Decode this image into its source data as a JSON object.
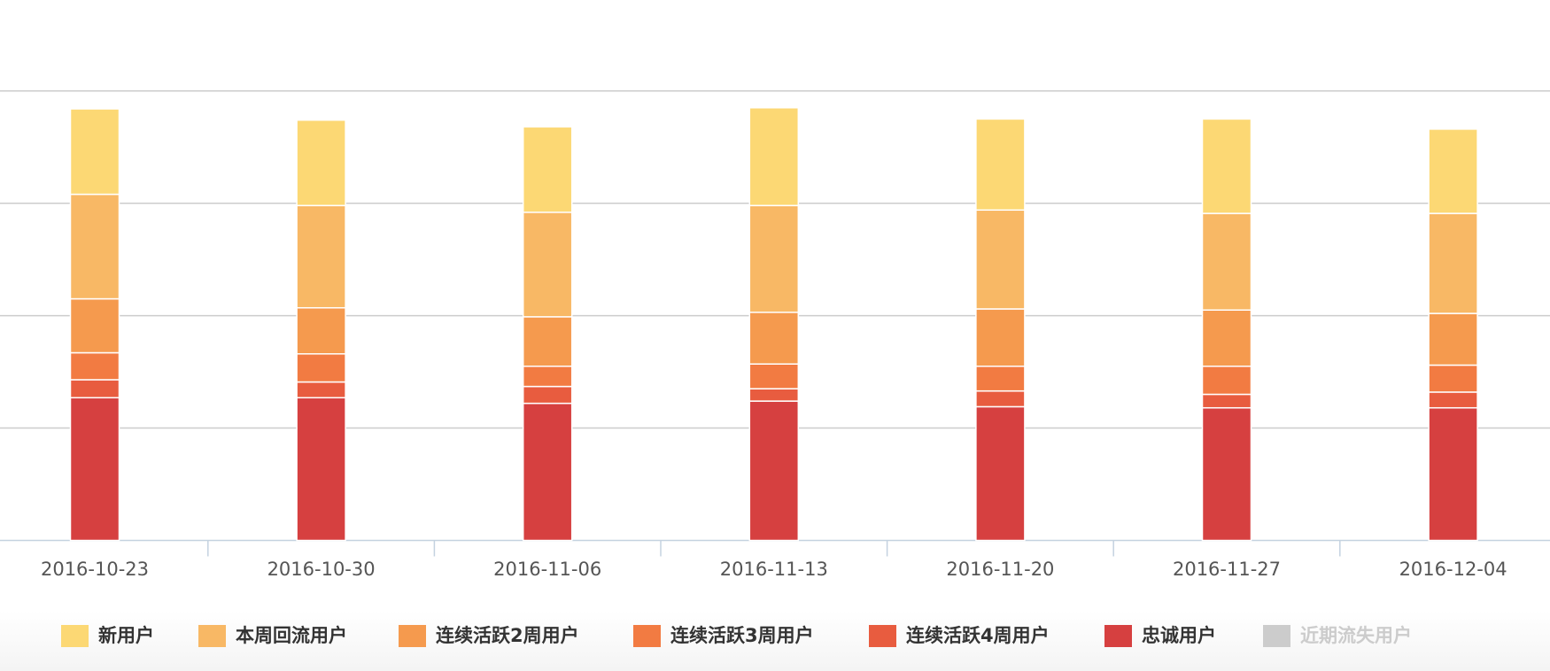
{
  "chart_data": {
    "type": "stacked-bar",
    "categories": [
      "2016-10-23",
      "2016-10-30",
      "2016-11-06",
      "2016-11-13",
      "2016-11-20",
      "2016-11-27",
      "2016-12-04"
    ],
    "series": [
      {
        "name": "新用户",
        "color": "#fcd874",
        "values": [
          76,
          76,
          76,
          87,
          81,
          84,
          75
        ]
      },
      {
        "name": "本周回流用户",
        "color": "#f8b865",
        "values": [
          93,
          91,
          93,
          95,
          88,
          86,
          89
        ]
      },
      {
        "name": "连续活跃2周用户",
        "color": "#f59a4e",
        "values": [
          48,
          41,
          44,
          46,
          51,
          50,
          46
        ]
      },
      {
        "name": "连续活跃3周用户",
        "color": "#f27b42",
        "values": [
          24,
          25,
          18,
          22,
          22,
          25,
          24
        ]
      },
      {
        "name": "连续活跃4周用户",
        "color": "#e85c3f",
        "values": [
          16,
          14,
          15,
          11,
          14,
          12,
          14
        ]
      },
      {
        "name": "忠诚用户",
        "color": "#d64040",
        "values": [
          127,
          127,
          122,
          124,
          119,
          118,
          118
        ]
      },
      {
        "name": "近期流失用户",
        "color": "#cccccc",
        "hidden": true,
        "values": [
          null,
          null,
          null,
          null,
          null,
          null,
          null
        ]
      }
    ],
    "ylim": [
      0,
      400
    ],
    "yticks": [
      0,
      100,
      200,
      300,
      400
    ],
    "grid": true
  }
}
